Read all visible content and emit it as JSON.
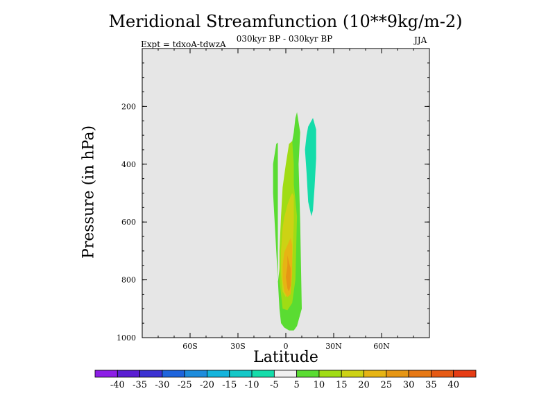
{
  "chart_data": {
    "type": "contour",
    "title": "Meridional Streamfunction (10**9kg/m-2)",
    "subtitle": "030kyr BP - 030kyr BP",
    "experiment_label": "Expt = tdxoA-tdwzA",
    "season": "JJA",
    "xlabel": "Latitude",
    "ylabel": "Pressure (in hPa)",
    "x_ticks": [
      "60S",
      "30S",
      "0",
      "30N",
      "60N"
    ],
    "x_tick_values": [
      -60,
      -30,
      0,
      30,
      60
    ],
    "xlim": [
      -90,
      90
    ],
    "y_ticks": [
      "200",
      "400",
      "600",
      "800",
      "1000"
    ],
    "y_tick_values": [
      200,
      400,
      600,
      800,
      1000
    ],
    "ylim": [
      1000,
      0
    ],
    "background": "#e6e6e6",
    "colorbar_labels": [
      "-40",
      "-35",
      "-30",
      "-25",
      "-20",
      "-15",
      "-10",
      "-5",
      "5",
      "10",
      "15",
      "20",
      "25",
      "30",
      "35",
      "40"
    ],
    "colorbar_colors": [
      "#8c1ee6",
      "#5a1ed2",
      "#3c32d2",
      "#1e64dc",
      "#1e8cdc",
      "#14b4dc",
      "#14c8c8",
      "#14dcaa",
      "#f0f0f0",
      "#5adc32",
      "#a0dc14",
      "#cdd214",
      "#e6b414",
      "#e69614",
      "#e67814",
      "#e65a14",
      "#e63c14"
    ],
    "regions": [
      {
        "level": "5",
        "color": "#5adc32",
        "lat": [
          -5,
          -1,
          1,
          5,
          6,
          7,
          9,
          8,
          9,
          10,
          7,
          5,
          2,
          -1,
          -3,
          -4,
          -5,
          -6,
          -7,
          -8,
          -8,
          -6,
          -5
        ],
        "p": [
          810,
          625,
          415,
          290,
          240,
          220,
          290,
          400,
          600,
          900,
          960,
          975,
          975,
          965,
          950,
          900,
          800,
          700,
          600,
          500,
          400,
          330,
          325
        ]
      },
      {
        "level": "10",
        "color": "#a0dc14",
        "lat": [
          -4,
          -3,
          -2,
          0,
          2,
          4,
          5,
          5,
          7,
          6,
          4,
          1,
          -2,
          -3,
          -4,
          -4
        ],
        "p": [
          700,
          580,
          480,
          400,
          330,
          320,
          400,
          470,
          580,
          800,
          880,
          905,
          900,
          850,
          800,
          720
        ]
      },
      {
        "level": "15",
        "color": "#cdd214",
        "lat": [
          -1,
          1,
          3,
          4,
          5,
          5,
          4,
          2,
          0,
          -2,
          -3,
          -3,
          -2
        ],
        "p": [
          585,
          540,
          510,
          500,
          510,
          600,
          750,
          840,
          860,
          840,
          780,
          700,
          620
        ]
      },
      {
        "level": "20",
        "color": "#e6b414",
        "lat": [
          -1,
          1,
          3,
          4,
          4,
          3,
          1,
          -1,
          -2,
          -2
        ],
        "p": [
          705,
          680,
          655,
          680,
          780,
          850,
          860,
          840,
          800,
          750
        ]
      },
      {
        "level": "25",
        "color": "#e69614",
        "lat": [
          1,
          2,
          3,
          3,
          2,
          1,
          0,
          1
        ],
        "p": [
          715,
          740,
          760,
          820,
          840,
          830,
          790,
          750
        ]
      },
      {
        "level": "-5",
        "color": "#14dcaa",
        "lat": [
          17,
          19,
          19,
          18,
          17,
          16,
          14,
          13,
          12,
          13,
          14,
          16
        ],
        "p": [
          240,
          280,
          380,
          480,
          560,
          580,
          530,
          430,
          350,
          300,
          270,
          250
        ]
      }
    ]
  }
}
